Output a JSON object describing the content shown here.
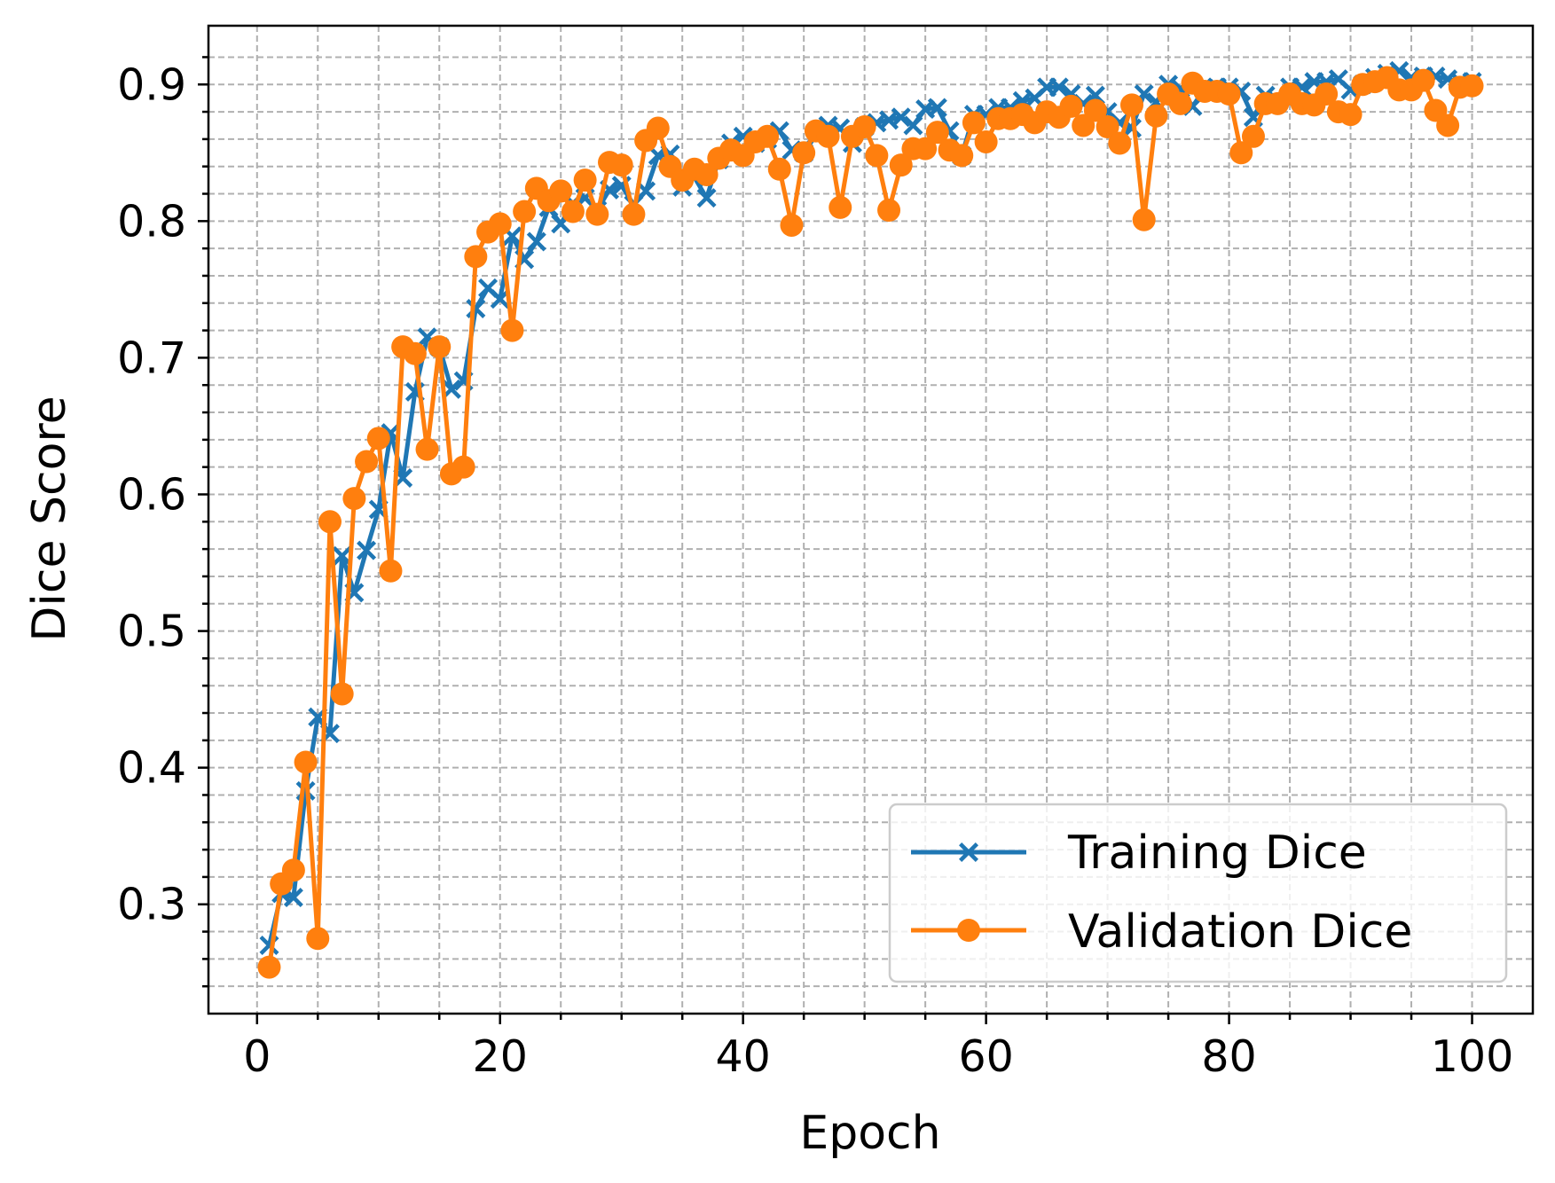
{
  "chart_data": {
    "type": "line",
    "title": "",
    "xlabel": "Epoch",
    "ylabel": "Dice Score",
    "xlim": [
      -4,
      105
    ],
    "ylim": [
      0.22,
      0.943
    ],
    "xticks": [
      0,
      20,
      40,
      60,
      80,
      100
    ],
    "yticks": [
      0.3,
      0.4,
      0.5,
      0.6,
      0.7,
      0.8,
      0.9
    ],
    "xtick_labels": [
      "0",
      "20",
      "40",
      "60",
      "80",
      "100"
    ],
    "ytick_labels": [
      "0.3",
      "0.4",
      "0.5",
      "0.6",
      "0.7",
      "0.8",
      "0.9"
    ],
    "grid": true,
    "grid_minor": true,
    "legend_position": "lower-right",
    "x": [
      1,
      2,
      3,
      4,
      5,
      6,
      7,
      8,
      9,
      10,
      11,
      12,
      13,
      14,
      15,
      16,
      17,
      18,
      19,
      20,
      21,
      22,
      23,
      24,
      25,
      26,
      27,
      28,
      29,
      30,
      31,
      32,
      33,
      34,
      35,
      36,
      37,
      38,
      39,
      40,
      41,
      42,
      43,
      44,
      45,
      46,
      47,
      48,
      49,
      50,
      51,
      52,
      53,
      54,
      55,
      56,
      57,
      58,
      59,
      60,
      61,
      62,
      63,
      64,
      65,
      66,
      67,
      68,
      69,
      70,
      71,
      72,
      73,
      74,
      75,
      76,
      77,
      78,
      79,
      80,
      81,
      82,
      83,
      84,
      85,
      86,
      87,
      88,
      89,
      90,
      91,
      92,
      93,
      94,
      95,
      96,
      97,
      98,
      99,
      100
    ],
    "series": [
      {
        "name": "Training Dice",
        "color": "#1f77b4",
        "marker": "x",
        "values": [
          0.27,
          0.308,
          0.305,
          0.383,
          0.437,
          0.425,
          0.555,
          0.528,
          0.559,
          0.589,
          0.645,
          0.612,
          0.675,
          0.715,
          0.708,
          0.677,
          0.683,
          0.736,
          0.751,
          0.743,
          0.789,
          0.772,
          0.785,
          0.81,
          0.798,
          0.813,
          0.817,
          0.808,
          0.823,
          0.826,
          0.812,
          0.822,
          0.848,
          0.849,
          0.825,
          0.832,
          0.817,
          0.845,
          0.857,
          0.862,
          0.857,
          0.86,
          0.866,
          0.852,
          0.85,
          0.863,
          0.87,
          0.868,
          0.857,
          0.869,
          0.872,
          0.874,
          0.876,
          0.87,
          0.882,
          0.883,
          0.866,
          0.848,
          0.878,
          0.878,
          0.883,
          0.883,
          0.888,
          0.89,
          0.898,
          0.898,
          0.893,
          0.886,
          0.892,
          0.88,
          0.872,
          0.868,
          0.893,
          0.887,
          0.9,
          0.897,
          0.884,
          0.897,
          0.898,
          0.898,
          0.895,
          0.876,
          0.892,
          0.888,
          0.898,
          0.898,
          0.902,
          0.902,
          0.904,
          0.896,
          0.9,
          0.905,
          0.908,
          0.91,
          0.905,
          0.906,
          0.906,
          0.904,
          0.902,
          0.902
        ]
      },
      {
        "name": "Validation Dice",
        "color": "#ff7f0e",
        "marker": "o",
        "values": [
          0.254,
          0.315,
          0.325,
          0.404,
          0.275,
          0.58,
          0.454,
          0.597,
          0.624,
          0.641,
          0.544,
          0.708,
          0.703,
          0.633,
          0.708,
          0.615,
          0.62,
          0.774,
          0.792,
          0.798,
          0.72,
          0.807,
          0.824,
          0.815,
          0.822,
          0.807,
          0.83,
          0.805,
          0.843,
          0.841,
          0.805,
          0.859,
          0.868,
          0.84,
          0.83,
          0.838,
          0.834,
          0.846,
          0.852,
          0.848,
          0.858,
          0.862,
          0.838,
          0.797,
          0.85,
          0.866,
          0.862,
          0.81,
          0.862,
          0.869,
          0.848,
          0.808,
          0.841,
          0.853,
          0.853,
          0.865,
          0.852,
          0.848,
          0.872,
          0.858,
          0.875,
          0.875,
          0.878,
          0.872,
          0.88,
          0.876,
          0.884,
          0.87,
          0.881,
          0.869,
          0.857,
          0.885,
          0.801,
          0.877,
          0.893,
          0.886,
          0.901,
          0.895,
          0.895,
          0.893,
          0.85,
          0.862,
          0.886,
          0.886,
          0.893,
          0.886,
          0.885,
          0.893,
          0.88,
          0.878,
          0.9,
          0.902,
          0.905,
          0.896,
          0.896,
          0.903,
          0.881,
          0.87,
          0.898,
          0.899
        ]
      }
    ]
  }
}
